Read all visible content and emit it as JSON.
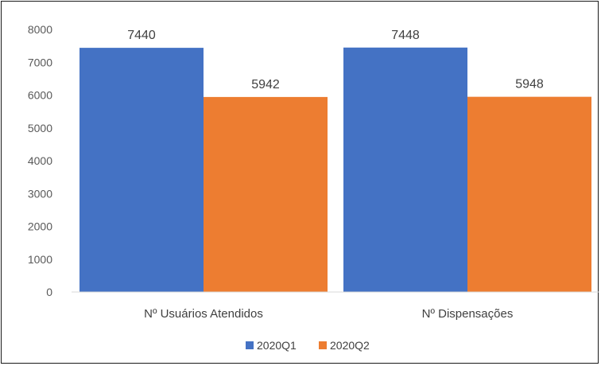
{
  "chart_data": {
    "type": "bar",
    "categories": [
      "Nº Usuários Atendidos",
      "Nº Dispensações"
    ],
    "series": [
      {
        "name": "2020Q1",
        "values": [
          7440,
          7448
        ],
        "color": "#4472C4"
      },
      {
        "name": "2020Q2",
        "values": [
          5942,
          5948
        ],
        "color": "#ED7D31"
      }
    ],
    "ylim": [
      0,
      8000
    ],
    "yticks": [
      0,
      1000,
      2000,
      3000,
      4000,
      5000,
      6000,
      7000,
      8000
    ],
    "data_labels": true,
    "grid": false,
    "legend": "bottom-center"
  }
}
